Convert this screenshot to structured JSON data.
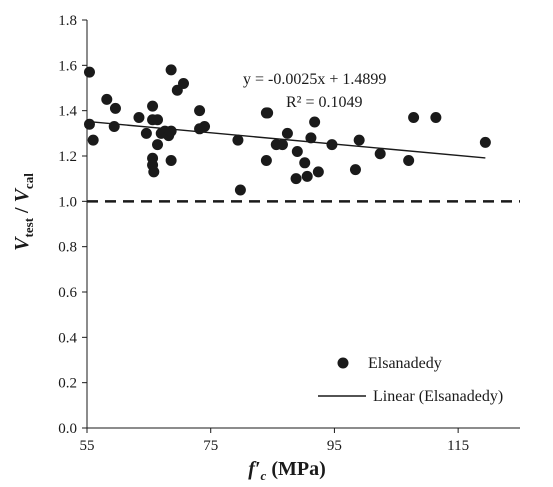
{
  "chart_data": {
    "type": "scatter",
    "xlabel": {
      "main": "f′",
      "sub": "c",
      "rest": " (MPa)"
    },
    "ylabel": {
      "v1": "V",
      "sub1": "test",
      "sep": " / ",
      "v2": "V",
      "sub2": "cal"
    },
    "xlim": [
      55,
      125
    ],
    "ylim": [
      0,
      1.8
    ],
    "x_ticks": [
      "55",
      "75",
      "95",
      "115"
    ],
    "x_tick_values": [
      55,
      75,
      95,
      115
    ],
    "y_ticks": [
      "0.0",
      "0.2",
      "0.4",
      "0.6",
      "0.8",
      "1.0",
      "1.2",
      "1.4",
      "1.6",
      "1.8"
    ],
    "y_tick_values": [
      0,
      0.2,
      0.4,
      0.6,
      0.8,
      1.0,
      1.2,
      1.4,
      1.6,
      1.8
    ],
    "grid": false,
    "legend_position": "bottom-right",
    "series": [
      {
        "name": "Elsanadedy",
        "marker": "circle",
        "color": "#1a1a1a",
        "points": [
          [
            55.4,
            1.57
          ],
          [
            55.4,
            1.34
          ],
          [
            56.0,
            1.27
          ],
          [
            58.2,
            1.45
          ],
          [
            59.4,
            1.33
          ],
          [
            59.6,
            1.41
          ],
          [
            63.4,
            1.37
          ],
          [
            64.6,
            1.3
          ],
          [
            65.6,
            1.42
          ],
          [
            65.6,
            1.36
          ],
          [
            65.6,
            1.19
          ],
          [
            65.6,
            1.16
          ],
          [
            65.8,
            1.13
          ],
          [
            66.4,
            1.36
          ],
          [
            66.4,
            1.25
          ],
          [
            67.0,
            1.3
          ],
          [
            67.6,
            1.31
          ],
          [
            68.2,
            1.29
          ],
          [
            68.6,
            1.58
          ],
          [
            68.6,
            1.31
          ],
          [
            68.6,
            1.18
          ],
          [
            69.6,
            1.49
          ],
          [
            70.6,
            1.52
          ],
          [
            73.2,
            1.4
          ],
          [
            73.2,
            1.32
          ],
          [
            74.0,
            1.33
          ],
          [
            79.4,
            1.27
          ],
          [
            79.8,
            1.05
          ],
          [
            84.0,
            1.39
          ],
          [
            84.0,
            1.18
          ],
          [
            84.2,
            1.39
          ],
          [
            85.6,
            1.25
          ],
          [
            86.6,
            1.25
          ],
          [
            87.4,
            1.3
          ],
          [
            88.8,
            1.1
          ],
          [
            89.0,
            1.22
          ],
          [
            90.2,
            1.17
          ],
          [
            90.6,
            1.11
          ],
          [
            91.2,
            1.28
          ],
          [
            91.8,
            1.35
          ],
          [
            92.4,
            1.13
          ],
          [
            94.6,
            1.25
          ],
          [
            98.4,
            1.14
          ],
          [
            99.0,
            1.27
          ],
          [
            102.4,
            1.21
          ],
          [
            107.0,
            1.18
          ],
          [
            107.8,
            1.37
          ],
          [
            111.4,
            1.37
          ],
          [
            119.4,
            1.26
          ]
        ]
      },
      {
        "name": "Linear (Elsanadedy)",
        "type": "line",
        "color": "#1a1a1a",
        "slope": -0.0025,
        "intercept": 1.4899,
        "x_range": [
          55,
          119.4
        ]
      }
    ],
    "reference_line": {
      "y": 1.0,
      "style": "dashed",
      "color": "#1a1a1a"
    },
    "annotations": {
      "equation": "y = -0.0025x + 1.4899",
      "r_squared": "R² = 0.1049"
    },
    "legend": [
      {
        "label": "Elsanadedy",
        "symbol": "circle"
      },
      {
        "label": "Linear (Elsanadedy)",
        "symbol": "line"
      }
    ]
  }
}
